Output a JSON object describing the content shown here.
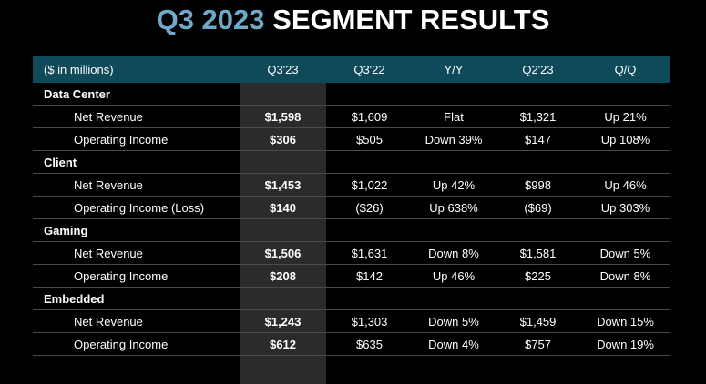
{
  "title": {
    "accent": "Q3 2023",
    "rest": "SEGMENT RESULTS"
  },
  "colors": {
    "accent": "#6fa8c8",
    "header_bg": "#0e4a5a",
    "highlight_col": "#2b2b2b"
  },
  "table": {
    "headers": [
      "($ in millions)",
      "Q3'23",
      "Q3'22",
      "Y/Y",
      "Q2'23",
      "Q/Q"
    ],
    "segments": [
      {
        "name": "Data Center",
        "rows": [
          [
            "Net Revenue",
            "$1,598",
            "$1,609",
            "Flat",
            "$1,321",
            "Up 21%"
          ],
          [
            "Operating Income",
            "$306",
            "$505",
            "Down 39%",
            "$147",
            "Up 108%"
          ]
        ]
      },
      {
        "name": "Client",
        "rows": [
          [
            "Net Revenue",
            "$1,453",
            "$1,022",
            "Up 42%",
            "$998",
            "Up 46%"
          ],
          [
            "Operating Income (Loss)",
            "$140",
            "($26)",
            "Up 638%",
            "($69)",
            "Up 303%"
          ]
        ]
      },
      {
        "name": "Gaming",
        "rows": [
          [
            "Net Revenue",
            "$1,506",
            "$1,631",
            "Down 8%",
            "$1,581",
            "Down 5%"
          ],
          [
            "Operating Income",
            "$208",
            "$142",
            "Up 46%",
            "$225",
            "Down 8%"
          ]
        ]
      },
      {
        "name": "Embedded",
        "rows": [
          [
            "Net Revenue",
            "$1,243",
            "$1,303",
            "Down 5%",
            "$1,459",
            "Down 15%"
          ],
          [
            "Operating Income",
            "$612",
            "$635",
            "Down 4%",
            "$757",
            "Down 19%"
          ]
        ]
      }
    ]
  }
}
